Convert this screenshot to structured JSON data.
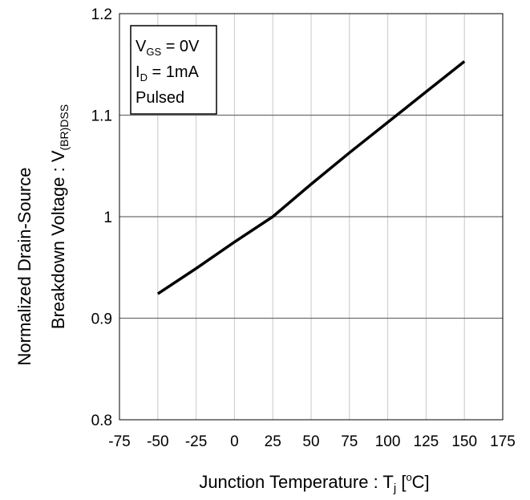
{
  "chart_data": {
    "type": "line",
    "x_label": {
      "main": "Junction Temperature : T",
      "sub": "j",
      "unit_open": " [",
      "unit_sup": "o",
      "unit_close": "C]"
    },
    "y_label": {
      "line1": "Normalized Drain-Source",
      "line2_main": "Breakdown Voltage : V",
      "line2_sub": "(BR)DSS"
    },
    "xlim": [
      -75,
      175
    ],
    "ylim": [
      0.8,
      1.2
    ],
    "x_ticks": [
      "-75",
      "-50",
      "-25",
      "0",
      "25",
      "50",
      "75",
      "100",
      "125",
      "150",
      "175"
    ],
    "y_ticks": [
      "0.8",
      "0.9",
      "1",
      "1.1",
      "1.2"
    ],
    "grid": {
      "vertical": true,
      "horizontal": true
    },
    "series": [
      {
        "x": [
          -50,
          -25,
          0,
          25,
          50,
          75,
          100,
          125,
          150
        ],
        "y": [
          0.924,
          0.949,
          0.975,
          1.0,
          1.032,
          1.063,
          1.093,
          1.123,
          1.153
        ]
      }
    ],
    "annotation": {
      "lines": [
        {
          "main": "V",
          "sub": "GS",
          "rest": " = 0V"
        },
        {
          "main": "I",
          "sub": "D",
          "rest": " = 1mA"
        },
        {
          "main": "Pulsed",
          "sub": "",
          "rest": ""
        }
      ]
    },
    "colors": {
      "line": "#000000",
      "grid_major": "#6e6e6e",
      "grid_minor": "#c8c8c8"
    }
  }
}
